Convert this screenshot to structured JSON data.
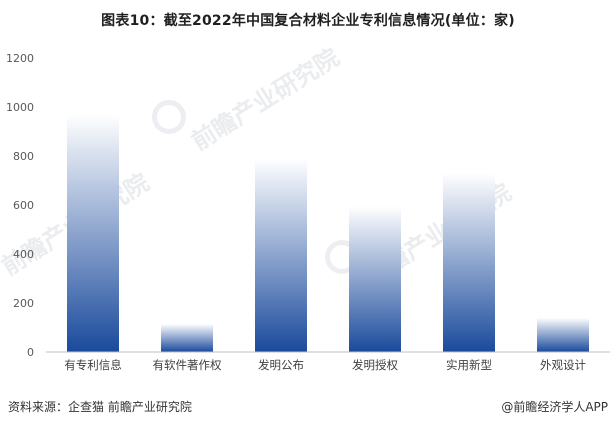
{
  "title": "图表10：截至2022年中国复合材料企业专利信息情况(单位：家)",
  "source": "资料来源：企查猫 前瞻产业研究院",
  "brand": "@前瞻经济学人APP",
  "watermark": "前瞻产业研究院",
  "colors": {
    "bar_top": "#ffffff",
    "bar_bottom": "#1a4a9c",
    "axis": "#bfbfbf"
  },
  "chart_data": {
    "type": "bar",
    "title": "图表10：截至2022年中国复合材料企业专利信息情况(单位：家)",
    "categories": [
      "有专利信息",
      "有软件著作权",
      "发明公布",
      "发明授权",
      "实用新型",
      "外观设计"
    ],
    "values": [
      970,
      115,
      790,
      595,
      730,
      140
    ],
    "ylim": [
      0,
      1200
    ],
    "yticks": [
      0,
      200,
      400,
      600,
      800,
      1000,
      1200
    ],
    "grid": false,
    "legend": "none"
  }
}
